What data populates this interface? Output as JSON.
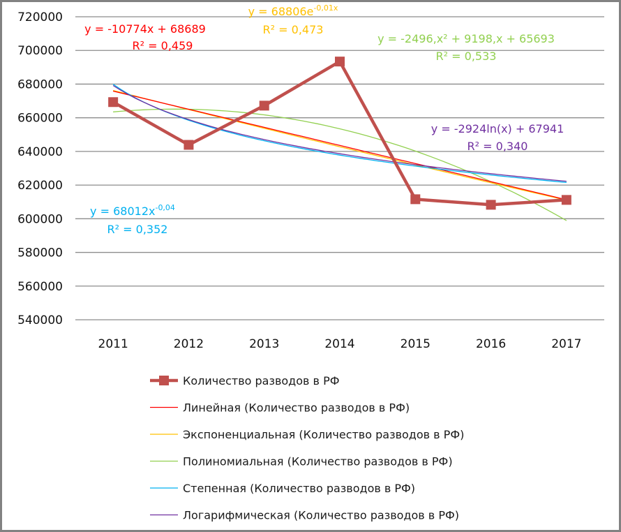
{
  "chart_data": {
    "type": "line",
    "title": "",
    "xlabel": "",
    "ylabel": "",
    "categories": [
      "2011",
      "2012",
      "2013",
      "2014",
      "2015",
      "2016",
      "2017"
    ],
    "ylim": [
      540000,
      720000
    ],
    "yticks": [
      "720000",
      "700000",
      "680000",
      "660000",
      "640000",
      "620000",
      "600000",
      "580000",
      "560000",
      "540000"
    ],
    "ytick_values": [
      720000,
      700000,
      680000,
      660000,
      640000,
      620000,
      600000,
      580000,
      560000,
      540000
    ],
    "grid": true,
    "legend_position": "bottom",
    "series": [
      {
        "name": "Количество разводов в РФ",
        "color": "#c0504d",
        "marker": "square",
        "values": [
          669300,
          643900,
          667200,
          693400,
          611600,
          608300,
          611200
        ]
      }
    ],
    "trendlines": [
      {
        "type": "linear",
        "name": "Линейная (Количество разводов в РФ)",
        "color": "#ff0000",
        "equation": "y = -10774x + 68689",
        "r2": "R² = 0,459",
        "label_color": "#ff0000"
      },
      {
        "type": "exponential",
        "name": "Экспоненциальная (Количество разводов в РФ)",
        "color": "#ffc000",
        "equation": "y = 68806e",
        "equation_sup": "-0,01x",
        "r2": "R² = 0,473",
        "label_color": "#ffc000"
      },
      {
        "type": "polynomial",
        "name": "Полиномиальная (Количество разводов в РФ)",
        "color": "#92d050",
        "equation": "y = -2496,x² + 9198,x + 65693",
        "r2": "R² = 0,533",
        "label_color": "#92d050"
      },
      {
        "type": "power",
        "name": "Степенная (Количество разводов в РФ)",
        "color": "#00b0f0",
        "equation": "y = 68012x",
        "equation_sup": "-0,04",
        "r2": "R² = 0,352",
        "label_color": "#00b0f0"
      },
      {
        "type": "logarithmic",
        "name": "Логарифмическая (Количество разводов в РФ)",
        "color": "#7030a0",
        "equation": "y = -2924ln(x) + 67941",
        "r2": "R² = 0,340",
        "label_color": "#7030a0"
      }
    ]
  }
}
